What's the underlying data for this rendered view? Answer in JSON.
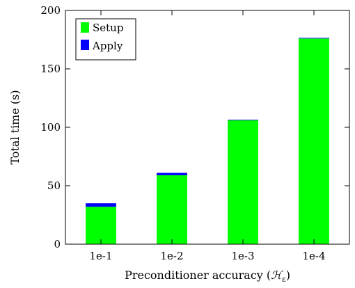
{
  "chart_data": {
    "type": "bar",
    "stacked": true,
    "categories": [
      "1e-1",
      "1e-2",
      "1e-3",
      "1e-4"
    ],
    "series": [
      {
        "name": "Setup",
        "color": "#00ff00",
        "values": [
          32,
          59,
          106,
          176
        ]
      },
      {
        "name": "Apply",
        "color": "#0000ff",
        "values": [
          3,
          2,
          0.5,
          0.5
        ]
      }
    ],
    "xlabel": "Preconditioner accuracy (ℋε)",
    "xlabel_parts": {
      "prefix": "Preconditioner accuracy (",
      "symbol": "ℋ",
      "subscript": "ε",
      "suffix": ")"
    },
    "ylabel": "Total time (s)",
    "ylim": [
      0,
      200
    ],
    "yticks": [
      "0",
      "50",
      "100",
      "150",
      "200"
    ],
    "legend_position": "top-left",
    "grid": false
  }
}
